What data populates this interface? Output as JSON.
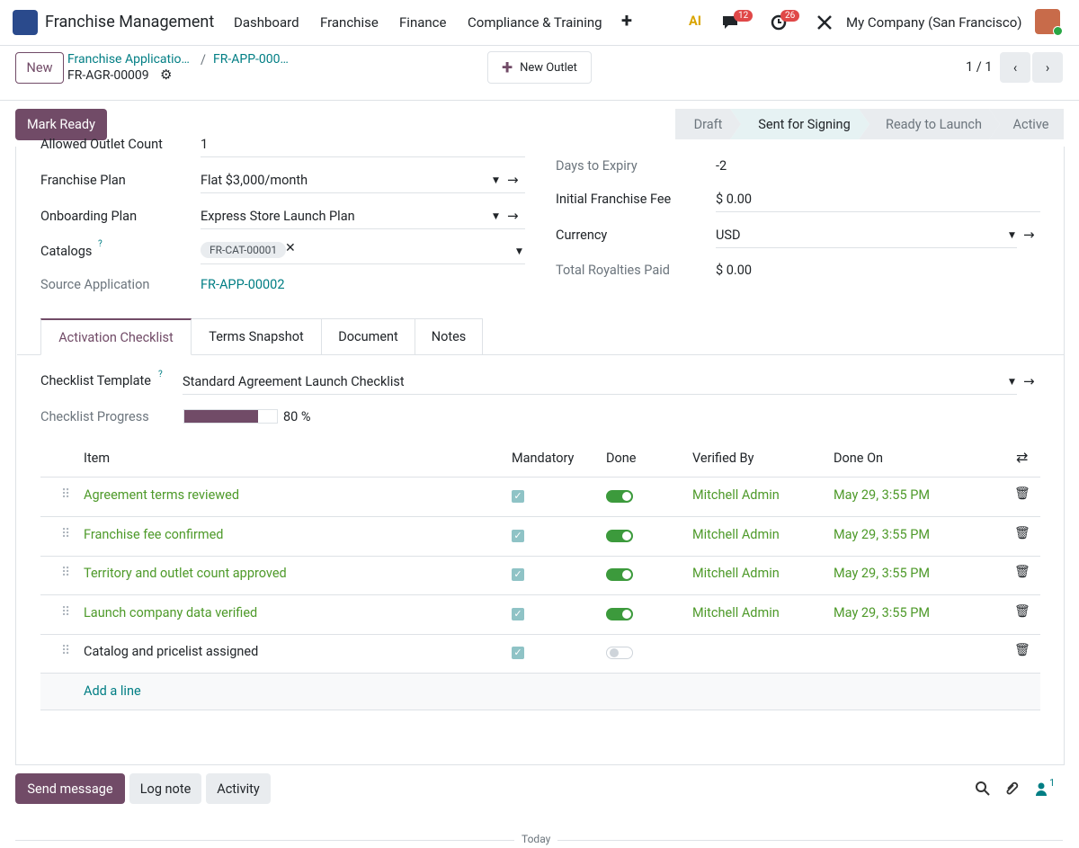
{
  "nav": {
    "app_name": "Franchise Management",
    "menu": [
      "Dashboard",
      "Franchise",
      "Finance",
      "Compliance & Training"
    ],
    "ai": "AI",
    "messages_badge": "12",
    "activities_badge": "26",
    "company": "My Company (San Francisco)"
  },
  "control": {
    "new_button": "New",
    "breadcrumb": [
      "Franchise Applicatio…",
      "FR-APP-000…"
    ],
    "record": "FR-AGR-00009",
    "new_outlet": "New Outlet",
    "pager": "1 / 1"
  },
  "status": {
    "mark_ready": "Mark Ready",
    "stages": [
      "Draft",
      "Sent for Signing",
      "Ready to Launch",
      "Active"
    ],
    "active_stage": 1
  },
  "form": {
    "left": [
      {
        "label": "Allowed Outlet Count",
        "value": "1"
      },
      {
        "label": "Franchise Plan",
        "value": "Flat $3,000/month"
      },
      {
        "label": "Onboarding Plan",
        "value": "Express Store Launch Plan"
      },
      {
        "label": "Catalogs",
        "help": "?",
        "tag": "FR-CAT-00001"
      },
      {
        "label": "Source Application",
        "value": "FR-APP-00002"
      }
    ],
    "right": [
      {
        "label": "Days to Expiry",
        "value": "-2"
      },
      {
        "label": "Initial Franchise Fee",
        "value": "$ 0.00"
      },
      {
        "label": "Currency",
        "value": "USD"
      },
      {
        "label": "Total Royalties Paid",
        "value": "$ 0.00"
      }
    ]
  },
  "tabs": [
    "Activation Checklist",
    "Terms Snapshot",
    "Document",
    "Notes"
  ],
  "checklist": {
    "template_label": "Checklist Template",
    "template_help": "?",
    "template": "Standard Agreement Launch Checklist",
    "progress_label_text": "Checklist Progress",
    "progress": 80,
    "progress_label": "80 %",
    "headers": [
      "Item",
      "Mandatory",
      "Done",
      "Verified By",
      "Done On"
    ],
    "rows": [
      {
        "item": "Agreement terms reviewed",
        "mandatory": true,
        "done": true,
        "verified_by": "Mitchell Admin",
        "done_on": "May 29, 3:55 PM"
      },
      {
        "item": "Franchise fee confirmed",
        "mandatory": true,
        "done": true,
        "verified_by": "Mitchell Admin",
        "done_on": "May 29, 3:55 PM"
      },
      {
        "item": "Territory and outlet count approved",
        "mandatory": true,
        "done": true,
        "verified_by": "Mitchell Admin",
        "done_on": "May 29, 3:55 PM"
      },
      {
        "item": "Launch company data verified",
        "mandatory": true,
        "done": true,
        "verified_by": "Mitchell Admin",
        "done_on": "May 29, 3:55 PM"
      },
      {
        "item": "Catalog and pricelist assigned",
        "mandatory": true,
        "done": false,
        "verified_by": null,
        "done_on": null
      }
    ],
    "add_line": "Add a line"
  },
  "chatter": {
    "send_message": "Send message",
    "log_note": "Log note",
    "activity": "Activity",
    "followers": "1",
    "today": "Today"
  }
}
